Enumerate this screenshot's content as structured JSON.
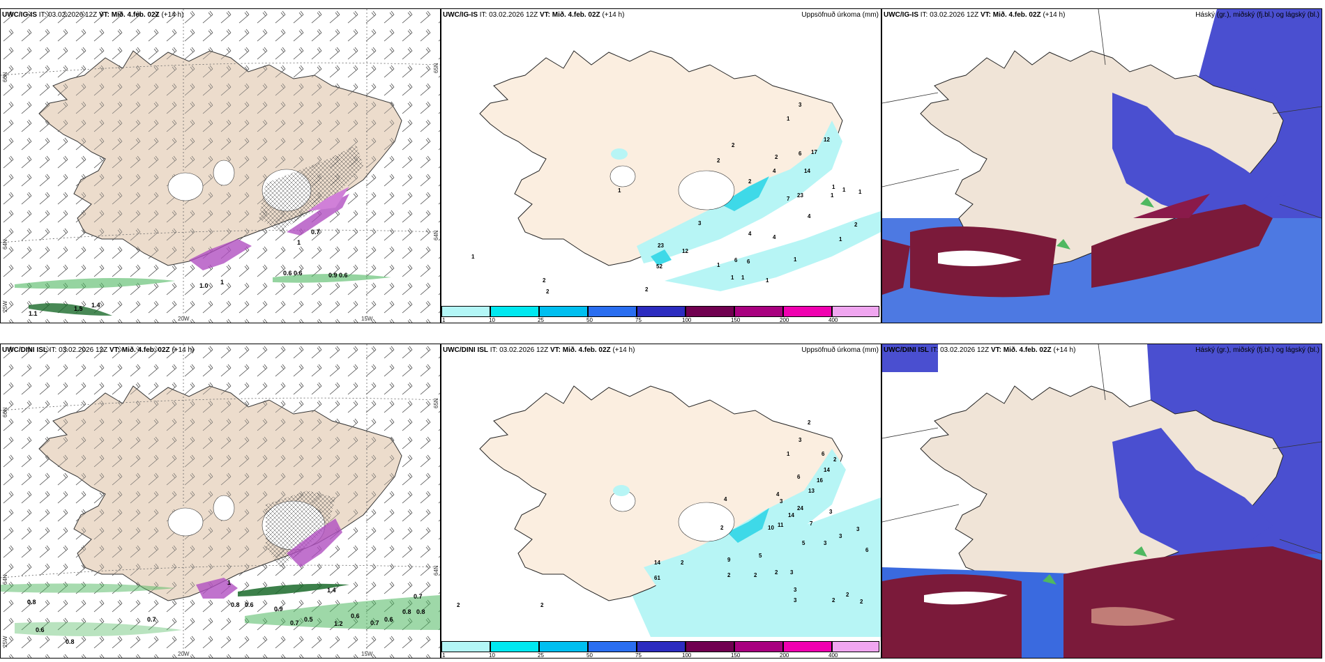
{
  "panels": {
    "p1": {
      "model": "UWC/IG-IS",
      "it": "IT: 03.02.2026 12Z",
      "vt_label": "VT:",
      "vt": "Mið. 4.feb. 02Z",
      "lead": "(+14 h)"
    },
    "p2": {
      "model": "UWC/IG-IS",
      "it": "IT: 03.02.2026 12Z",
      "vt_label": "VT:",
      "vt": "Mið. 4.feb. 02Z",
      "lead": "(+14 h)",
      "right_title": "Uppsöfnuð úrkoma (mm)"
    },
    "p3": {
      "model": "UWC/IG-IS",
      "it": "IT: 03.02.2026 12Z",
      "vt_label": "VT:",
      "vt": "Mið. 4.feb. 02Z",
      "lead": "(+14 h)",
      "right_title": "Háský (gr.), miðský (fj.bl.) og lágský (bl.)"
    },
    "p4": {
      "model": "UWC/DINI ISL",
      "it": "IT: 03.02.2026 12Z",
      "vt_label": "VT:",
      "vt": "Mið. 4.feb. 02Z",
      "lead": "(+14 h)"
    },
    "p5": {
      "model": "UWC/DINI ISL",
      "it": "IT: 03.02.2026 12Z",
      "vt_label": "VT:",
      "vt": "Mið. 4.feb. 02Z",
      "lead": "(+14 h)",
      "right_title": "Uppsöfnuð úrkoma (mm)"
    },
    "p6": {
      "model": "UWC/DINI ISL",
      "it": "IT: 03.02.2026 12Z",
      "vt_label": "VT:",
      "vt": "Mið. 4.feb. 02Z",
      "lead": "(+14 h)",
      "right_title": "Háský (gr.), miðský (fj.bl.) og lágský (bl.)"
    }
  },
  "axes": {
    "lat66": "66N",
    "lat64": "64N",
    "lat65e": "65N",
    "lat64e": "64N",
    "lon20": "20W",
    "lon15": "15W",
    "lon25": "25W"
  },
  "legend": {
    "labels": [
      "1",
      "10",
      "25",
      "50",
      "75",
      "100",
      "150",
      "200",
      "400"
    ],
    "colors": [
      "#b3f6f6",
      "#00e8f0",
      "#00bff0",
      "#2a6ef0",
      "#2c2cc0",
      "#700050",
      "#a8007f",
      "#f000b0",
      "#f0a6f0"
    ]
  },
  "colors": {
    "land": "#f0e4d7",
    "land_map1": "#ecdccc",
    "precip_light": "#b7f5f5",
    "precip_mid": "#3ed9e8",
    "high_cloud": "#7b1a3a",
    "mid_cloud": "#4a4fd0",
    "low_cloud": "#3a6adf",
    "snow_green": "#4fb860",
    "purple": "#b04fc0"
  },
  "precip_labels": {
    "ig": [
      "3",
      "1",
      "17",
      "12",
      "6",
      "14",
      "4",
      "23",
      "2",
      "1",
      "1",
      "1",
      "2",
      "7",
      "4",
      "4",
      "1",
      "1",
      "1",
      "1",
      "3",
      "12",
      "23",
      "52",
      "6",
      "6",
      "4",
      "2",
      "2",
      "1",
      "1",
      "1",
      "2",
      "2",
      "2",
      "1",
      "1",
      "2"
    ],
    "dini": [
      "2",
      "3",
      "1",
      "6",
      "2",
      "14",
      "16",
      "13",
      "4",
      "6",
      "3",
      "24",
      "14",
      "3",
      "11",
      "10",
      "2",
      "4",
      "7",
      "3",
      "5",
      "3",
      "3",
      "6",
      "5",
      "14",
      "2",
      "61",
      "9",
      "2",
      "2",
      "2",
      "3",
      "3",
      "3",
      "2",
      "2",
      "2",
      "2",
      "2"
    ]
  },
  "snow_labels": {
    "ig": [
      "0.6",
      "0.6",
      "0.9",
      "0.6",
      "1.1",
      "1.5",
      "1.4",
      "0.7",
      "1",
      "1.0",
      "1"
    ],
    "dini": [
      "0.8",
      "0.6",
      "0.8",
      "0.7",
      "0.5",
      "1.2",
      "0.6",
      "0.6",
      "0.8",
      "0.8",
      "0.7",
      "1.4",
      "0.8",
      "0.6",
      "0.9",
      "0.7",
      "0.7",
      "1"
    ]
  }
}
